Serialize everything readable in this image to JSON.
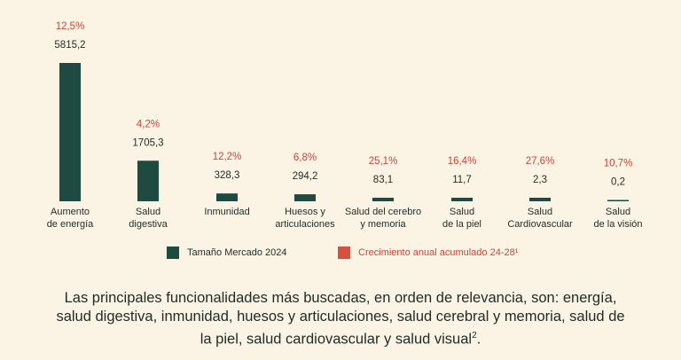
{
  "chart_data": {
    "type": "bar",
    "categories": [
      [
        "Aumento",
        "de energía"
      ],
      [
        "Salud",
        "digestiva"
      ],
      [
        "Inmunidad"
      ],
      [
        "Huesos y",
        "articulaciones"
      ],
      [
        "Salud del cerebro",
        "y memoria"
      ],
      [
        "Salud",
        "de la piel"
      ],
      [
        "Salud",
        "Cardiovascular"
      ],
      [
        "Salud",
        "de la visión"
      ]
    ],
    "series": [
      {
        "name": "Tamaño Mercado 2024",
        "values": [
          5815.2,
          1705.3,
          328.3,
          294.2,
          83.1,
          11.7,
          2.3,
          0.2
        ],
        "labels": [
          "5815,2",
          "1705,3",
          "328,3",
          "294,2",
          "83,1",
          "11,7",
          "2,3",
          "0,2"
        ],
        "color": "#1f4a42"
      },
      {
        "name": "Crecimiento anual acumulado 24-28¹",
        "values": [
          12.5,
          4.2,
          12.2,
          6.8,
          25.1,
          16.4,
          27.6,
          10.7
        ],
        "labels": [
          "12,5%",
          "4,2%",
          "12,2%",
          "6,8%",
          "25,1%",
          "16,4%",
          "27,6%",
          "10,7%"
        ],
        "color": "#d6513f"
      }
    ],
    "ylim": [
      0,
      5815.2
    ]
  },
  "legend": {
    "size_label": "Tamaño Mercado 2024",
    "growth_label": "Crecimiento anual acumulado 24-28¹"
  },
  "summary": {
    "text": "Las principales funcionalidades más buscadas, en orden de relevancia, son: energía, salud digestiva, inmunidad, huesos y articulaciones, salud cerebral y memoria, salud de la piel, salud cardiovascular y salud visual",
    "footnote": "2",
    "end": "."
  }
}
